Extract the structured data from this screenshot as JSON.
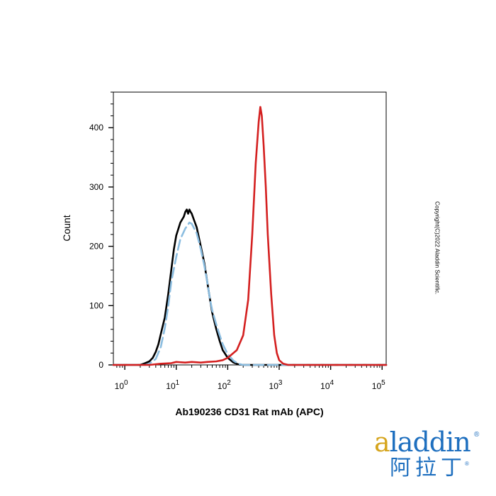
{
  "chart_data": {
    "type": "line",
    "title": "",
    "xlabel": "Ab190236 CD31 Rat mAb (APC)",
    "ylabel": "Count",
    "x_scale": "log",
    "xlim": [
      0.6,
      120000
    ],
    "ylim": [
      0,
      460
    ],
    "x_ticks": [
      {
        "value": 1,
        "base": "10",
        "exp": "0"
      },
      {
        "value": 10,
        "base": "10",
        "exp": "1"
      },
      {
        "value": 100,
        "base": "10",
        "exp": "2"
      },
      {
        "value": 1000,
        "base": "10",
        "exp": "3"
      },
      {
        "value": 10000,
        "base": "10",
        "exp": "4"
      },
      {
        "value": 100000,
        "base": "10",
        "exp": "5"
      }
    ],
    "y_ticks": [
      0,
      100,
      200,
      300,
      400
    ],
    "grid": false,
    "series": [
      {
        "color": "#000000",
        "style": "solid",
        "points": [
          [
            0.6,
            0
          ],
          [
            2,
            0
          ],
          [
            2.5,
            3
          ],
          [
            3,
            6
          ],
          [
            3.5,
            12
          ],
          [
            4,
            22
          ],
          [
            4.5,
            35
          ],
          [
            5,
            52
          ],
          [
            6,
            80
          ],
          [
            7,
            120
          ],
          [
            8,
            160
          ],
          [
            9,
            195
          ],
          [
            10,
            218
          ],
          [
            12,
            240
          ],
          [
            14,
            250
          ],
          [
            15,
            258
          ],
          [
            16,
            262
          ],
          [
            17,
            255
          ],
          [
            18,
            262
          ],
          [
            19,
            258
          ],
          [
            20,
            255
          ],
          [
            22,
            245
          ],
          [
            25,
            232
          ],
          [
            28,
            212
          ],
          [
            30,
            200
          ],
          [
            35,
            172
          ],
          [
            40,
            140
          ],
          [
            45,
            112
          ],
          [
            50,
            88
          ],
          [
            60,
            60
          ],
          [
            70,
            40
          ],
          [
            80,
            25
          ],
          [
            100,
            12
          ],
          [
            130,
            4
          ],
          [
            160,
            1
          ],
          [
            200,
            0
          ],
          [
            120000,
            0
          ]
        ]
      },
      {
        "color": "#8bbde0",
        "style": "dashed",
        "points": [
          [
            0.6,
            0
          ],
          [
            2.5,
            0
          ],
          [
            3,
            2
          ],
          [
            4,
            10
          ],
          [
            5,
            30
          ],
          [
            6,
            62
          ],
          [
            7,
            100
          ],
          [
            8,
            140
          ],
          [
            10,
            182
          ],
          [
            12,
            212
          ],
          [
            15,
            230
          ],
          [
            18,
            240
          ],
          [
            20,
            238
          ],
          [
            25,
            222
          ],
          [
            30,
            195
          ],
          [
            35,
            168
          ],
          [
            40,
            140
          ],
          [
            45,
            112
          ],
          [
            50,
            92
          ],
          [
            60,
            68
          ],
          [
            70,
            50
          ],
          [
            80,
            35
          ],
          [
            100,
            18
          ],
          [
            130,
            7
          ],
          [
            160,
            2
          ],
          [
            200,
            0
          ],
          [
            120000,
            0
          ]
        ]
      },
      {
        "color": "#d42020",
        "style": "solid",
        "points": [
          [
            0.6,
            0
          ],
          [
            3,
            0
          ],
          [
            5,
            2
          ],
          [
            8,
            3
          ],
          [
            10,
            5
          ],
          [
            15,
            4
          ],
          [
            20,
            5
          ],
          [
            30,
            4
          ],
          [
            40,
            5
          ],
          [
            60,
            6
          ],
          [
            80,
            8
          ],
          [
            100,
            12
          ],
          [
            150,
            25
          ],
          [
            200,
            50
          ],
          [
            250,
            110
          ],
          [
            300,
            220
          ],
          [
            350,
            340
          ],
          [
            400,
            410
          ],
          [
            430,
            435
          ],
          [
            460,
            420
          ],
          [
            500,
            370
          ],
          [
            550,
            300
          ],
          [
            600,
            220
          ],
          [
            700,
            120
          ],
          [
            800,
            50
          ],
          [
            900,
            20
          ],
          [
            1000,
            8
          ],
          [
            1200,
            2
          ],
          [
            1500,
            0
          ],
          [
            120000,
            0
          ]
        ]
      }
    ]
  },
  "watermark": {
    "copyright": "Copyright(C)2022 Aladdin Scientific.",
    "logo_latin_first": "a",
    "logo_latin_rest": "laddin",
    "logo_cjk": "阿拉丁",
    "logo_registered": "®"
  }
}
